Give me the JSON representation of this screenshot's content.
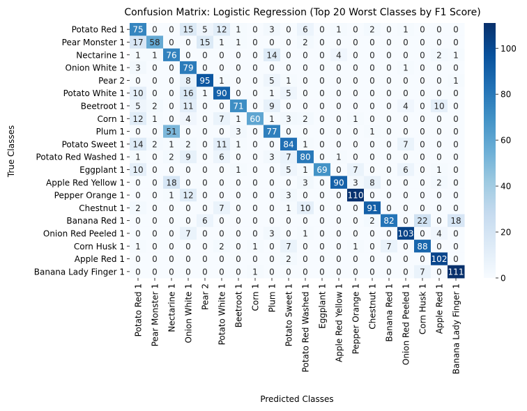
{
  "chart_data": {
    "type": "heatmap",
    "title": "Confusion Matrix: Logistic Regression (Top 20 Worst Classes by F1 Score)",
    "xlabel": "Predicted Classes",
    "ylabel": "True Classes",
    "row_labels": [
      "Potato Red 1",
      "Pear Monster 1",
      "Nectarine 1",
      "Onion White 1",
      "Pear 2",
      "Potato White 1",
      "Beetroot 1",
      "Corn 1",
      "Plum 1",
      "Potato Sweet 1",
      "Potato Red Washed 1",
      "Eggplant 1",
      "Apple Red Yellow 1",
      "Pepper Orange 1",
      "Chestnut 1",
      "Banana Red 1",
      "Onion Red Peeled 1",
      "Corn Husk 1",
      "Apple Red 1",
      "Banana Lady Finger 1"
    ],
    "col_labels": [
      "Potato Red 1",
      "Pear Monster 1",
      "Nectarine 1",
      "Onion White 1",
      "Pear 2",
      "Potato White 1",
      "Beetroot 1",
      "Corn 1",
      "Plum 1",
      "Potato Sweet 1",
      "Potato Red Washed 1",
      "Eggplant 1",
      "Apple Red Yellow 1",
      "Pepper Orange 1",
      "Chestnut 1",
      "Banana Red 1",
      "Onion Red Peeled 1",
      "Corn Husk 1",
      "Apple Red 1",
      "Banana Lady Finger 1"
    ],
    "values": [
      [
        75,
        0,
        0,
        15,
        5,
        12,
        1,
        0,
        3,
        0,
        6,
        0,
        1,
        0,
        2,
        0,
        1,
        0,
        0,
        0
      ],
      [
        17,
        58,
        0,
        0,
        15,
        1,
        1,
        0,
        0,
        0,
        2,
        0,
        0,
        0,
        0,
        0,
        0,
        0,
        0,
        0
      ],
      [
        1,
        1,
        76,
        0,
        0,
        0,
        0,
        0,
        14,
        0,
        0,
        0,
        4,
        0,
        0,
        0,
        0,
        0,
        2,
        1
      ],
      [
        3,
        0,
        0,
        79,
        0,
        0,
        0,
        0,
        0,
        0,
        0,
        0,
        0,
        0,
        0,
        0,
        1,
        0,
        0,
        0
      ],
      [
        0,
        0,
        0,
        8,
        95,
        1,
        0,
        0,
        5,
        1,
        0,
        0,
        0,
        0,
        0,
        0,
        0,
        0,
        0,
        1
      ],
      [
        10,
        0,
        0,
        16,
        1,
        90,
        0,
        0,
        1,
        5,
        0,
        0,
        0,
        0,
        0,
        0,
        0,
        0,
        0,
        0
      ],
      [
        5,
        2,
        0,
        11,
        0,
        0,
        71,
        0,
        9,
        0,
        0,
        0,
        0,
        0,
        0,
        0,
        4,
        0,
        10,
        0
      ],
      [
        12,
        1,
        0,
        4,
        0,
        7,
        1,
        60,
        1,
        3,
        2,
        0,
        0,
        1,
        0,
        0,
        0,
        0,
        0,
        0
      ],
      [
        0,
        0,
        51,
        0,
        0,
        0,
        3,
        0,
        77,
        0,
        0,
        0,
        0,
        0,
        1,
        0,
        0,
        0,
        0,
        0
      ],
      [
        14,
        2,
        1,
        2,
        0,
        11,
        1,
        0,
        0,
        84,
        1,
        0,
        0,
        0,
        0,
        0,
        7,
        0,
        0,
        0
      ],
      [
        1,
        0,
        2,
        9,
        0,
        6,
        0,
        0,
        3,
        7,
        80,
        0,
        1,
        0,
        0,
        0,
        0,
        0,
        0,
        0
      ],
      [
        10,
        0,
        0,
        0,
        0,
        0,
        1,
        0,
        0,
        5,
        1,
        69,
        0,
        7,
        0,
        0,
        6,
        0,
        1,
        0
      ],
      [
        0,
        0,
        18,
        0,
        0,
        0,
        0,
        0,
        0,
        0,
        3,
        0,
        90,
        3,
        8,
        0,
        0,
        0,
        2,
        0
      ],
      [
        0,
        0,
        1,
        12,
        0,
        0,
        0,
        0,
        0,
        3,
        0,
        0,
        0,
        110,
        0,
        0,
        0,
        0,
        0,
        0
      ],
      [
        2,
        0,
        0,
        0,
        0,
        7,
        0,
        0,
        0,
        1,
        10,
        0,
        0,
        0,
        91,
        0,
        0,
        0,
        0,
        0
      ],
      [
        0,
        0,
        0,
        0,
        6,
        0,
        0,
        0,
        0,
        0,
        0,
        0,
        0,
        0,
        2,
        82,
        0,
        22,
        0,
        18
      ],
      [
        0,
        0,
        0,
        7,
        0,
        0,
        0,
        0,
        3,
        0,
        1,
        0,
        0,
        0,
        0,
        0,
        103,
        0,
        4,
        0
      ],
      [
        1,
        0,
        0,
        0,
        0,
        2,
        0,
        1,
        0,
        7,
        0,
        0,
        0,
        1,
        0,
        7,
        0,
        88,
        0,
        0
      ],
      [
        0,
        0,
        0,
        0,
        0,
        0,
        0,
        0,
        0,
        2,
        0,
        0,
        0,
        0,
        0,
        0,
        0,
        0,
        102,
        0
      ],
      [
        0,
        0,
        0,
        0,
        0,
        0,
        0,
        1,
        0,
        0,
        0,
        0,
        0,
        0,
        0,
        0,
        0,
        7,
        0,
        111
      ]
    ],
    "vmin": 0,
    "vmax": 111,
    "colormap": "Blues",
    "colorbar_ticks": [
      0,
      20,
      40,
      60,
      80,
      100
    ],
    "grid": false,
    "legend": "colorbar-right"
  }
}
